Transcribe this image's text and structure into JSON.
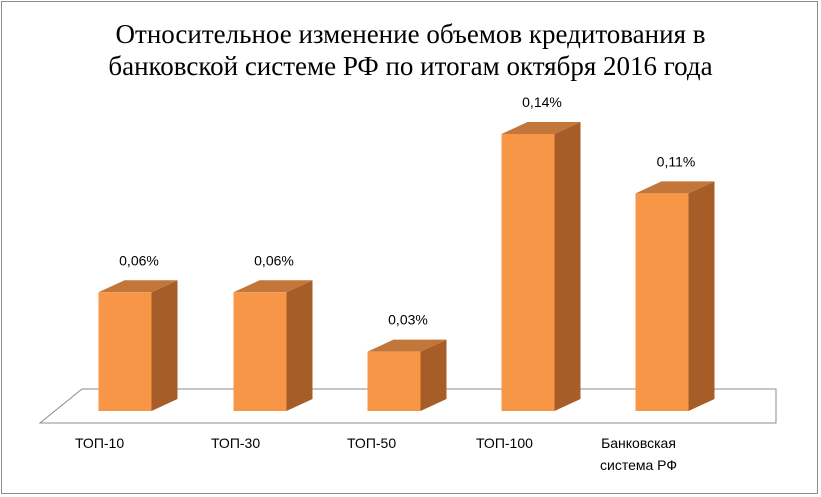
{
  "chart_data": {
    "type": "bar",
    "title": "Относительное изменение объемов кредитования в банковской системе РФ по итогам октября 2016 года",
    "title_lines": [
      "Относительное изменение объемов кредитования в",
      "банковской системе РФ по итогам октября 2016 года"
    ],
    "categories": [
      "ТОП-10",
      "ТОП-30",
      "ТОП-50",
      "ТОП-100",
      "Банковская система РФ"
    ],
    "category_label_lines": [
      [
        "ТОП-10"
      ],
      [
        "ТОП-30"
      ],
      [
        "ТОП-50"
      ],
      [
        "ТОП-100"
      ],
      [
        "Банковская",
        "система РФ"
      ]
    ],
    "values": [
      0.06,
      0.06,
      0.03,
      0.14,
      0.11
    ],
    "value_labels": [
      "0,06%",
      "0,06%",
      "0,03%",
      "0,14%",
      "0,11%"
    ],
    "unit": "%",
    "ylim": [
      0,
      0.14
    ],
    "grid": false,
    "legend": "none",
    "style": "3d-column",
    "colors": {
      "front": "#f79646",
      "side": "#a75d28",
      "top": "#c37639",
      "floor": "#ffffff",
      "floor_edge": "#8c8c8c"
    }
  }
}
